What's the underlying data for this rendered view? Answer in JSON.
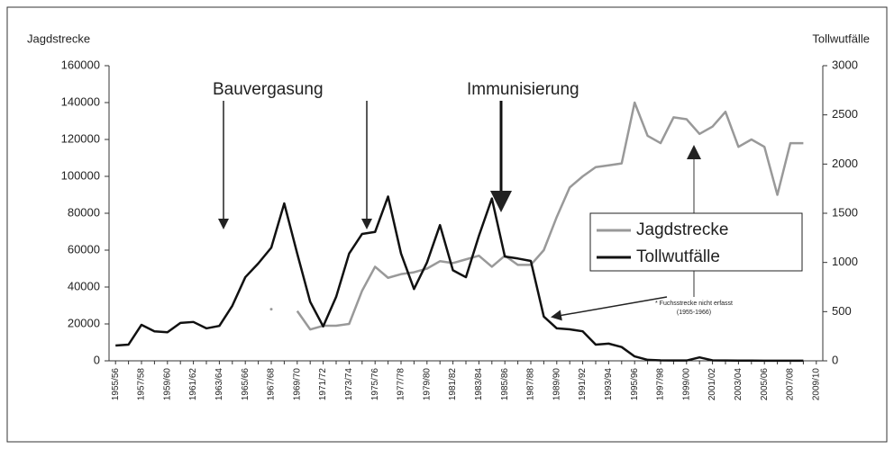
{
  "chart_data": {
    "type": "line",
    "y_label": "Jagdstrecke",
    "y2_label": "Tollwutfälle",
    "annotations": [
      "Bauvergasung",
      "Immunisierung",
      "* Fuchsstrecke nicht erfasst",
      "(1955-1966)"
    ],
    "categories": [
      "1955/56",
      null,
      "1957/58",
      null,
      "1959/60",
      null,
      "1961/62",
      null,
      "1963/64",
      null,
      "1965/66",
      null,
      "1967/68",
      null,
      "1969/70",
      null,
      "1971/72",
      null,
      "1973/74",
      null,
      "1975/76",
      null,
      "1977/78",
      null,
      "1979/80",
      null,
      "1981/82",
      null,
      "1983/84",
      null,
      "1985/86",
      null,
      "1987/88",
      null,
      "1989/90",
      null,
      "1991/92",
      null,
      "1993/94",
      null,
      "1995/96",
      null,
      "1997/98",
      null,
      "1999/00",
      null,
      "2001/02",
      null,
      "2003/04",
      null,
      "2005/06",
      null,
      "2007/08",
      null,
      "2009/10"
    ],
    "series": [
      {
        "name": "Jagdstrecke",
        "color": "#999999",
        "axis": "y",
        "values": [
          null,
          null,
          null,
          null,
          null,
          null,
          null,
          null,
          null,
          null,
          null,
          null,
          28000,
          null,
          27000,
          17000,
          19000,
          19000,
          20000,
          38000,
          51000,
          45000,
          47000,
          48000,
          50000,
          54000,
          53000,
          55000,
          57000,
          51000,
          57000,
          52000,
          52000,
          60000,
          78000,
          94000,
          100000,
          105000,
          106000,
          107000,
          140000,
          122000,
          118000,
          132000,
          131000,
          123000,
          127000,
          135000,
          116000,
          120000,
          116000,
          90000,
          118000,
          118000,
          null
        ]
      },
      {
        "name": "Tollwutfälle",
        "color": "#111111",
        "axis": "y2",
        "values": [
          155,
          165,
          366,
          300,
          290,
          385,
          395,
          330,
          355,
          560,
          850,
          990,
          1150,
          1600,
          1090,
          600,
          350,
          650,
          1090,
          1290,
          1310,
          1670,
          1090,
          730,
          1000,
          1380,
          920,
          850,
          1270,
          1650,
          1060,
          1040,
          1015,
          450,
          330,
          320,
          300,
          165,
          175,
          140,
          45,
          10,
          5,
          3,
          3,
          35,
          5,
          3,
          2,
          2,
          1,
          1,
          1,
          1,
          null
        ]
      }
    ],
    "ylim": [
      0,
      160000
    ],
    "yticks": [
      0,
      20000,
      40000,
      60000,
      80000,
      100000,
      120000,
      140000,
      160000
    ],
    "y2lim": [
      0,
      3000
    ],
    "y2ticks": [
      0,
      500,
      1000,
      1500,
      2000,
      2500,
      3000
    ]
  }
}
